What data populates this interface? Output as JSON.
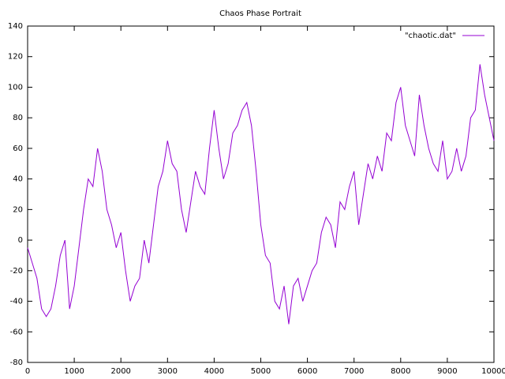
{
  "chart_data": {
    "type": "line",
    "title": "Chaos Phase Portrait",
    "x": [
      0,
      100,
      200,
      300,
      400,
      500,
      600,
      700,
      800,
      900,
      1000,
      1100,
      1200,
      1300,
      1400,
      1500,
      1600,
      1700,
      1800,
      1900,
      2000,
      2100,
      2200,
      2300,
      2400,
      2500,
      2600,
      2700,
      2800,
      2900,
      3000,
      3100,
      3200,
      3300,
      3400,
      3500,
      3600,
      3700,
      3800,
      3900,
      4000,
      4100,
      4200,
      4300,
      4400,
      4500,
      4600,
      4700,
      4800,
      4900,
      5000,
      5100,
      5200,
      5300,
      5400,
      5500,
      5600,
      5700,
      5800,
      5900,
      6000,
      6100,
      6200,
      6300,
      6400,
      6500,
      6600,
      6700,
      6800,
      6900,
      7000,
      7100,
      7200,
      7300,
      7400,
      7500,
      7600,
      7700,
      7800,
      7900,
      8000,
      8100,
      8200,
      8300,
      8400,
      8500,
      8600,
      8700,
      8800,
      8900,
      9000,
      9100,
      9200,
      9300,
      9400,
      9500,
      9600,
      9700,
      9800,
      9900,
      10000
    ],
    "series": [
      {
        "name": "\"chaotic.dat\"",
        "color": "#9400d3",
        "values": [
          -5,
          -15,
          -25,
          -45,
          -50,
          -45,
          -30,
          -10,
          0,
          -45,
          -30,
          -5,
          20,
          40,
          35,
          60,
          45,
          20,
          10,
          -5,
          5,
          -20,
          -40,
          -30,
          -25,
          0,
          -15,
          10,
          35,
          45,
          65,
          50,
          45,
          20,
          5,
          25,
          45,
          35,
          30,
          60,
          85,
          60,
          40,
          50,
          70,
          75,
          85,
          90,
          75,
          45,
          10,
          -10,
          -15,
          -40,
          -45,
          -30,
          -55,
          -30,
          -25,
          -40,
          -30,
          -20,
          -15,
          5,
          15,
          10,
          -5,
          25,
          20,
          35,
          45,
          10,
          30,
          50,
          40,
          55,
          45,
          70,
          65,
          90,
          100,
          75,
          65,
          55,
          95,
          75,
          60,
          50,
          45,
          65,
          40,
          45,
          60,
          45,
          55,
          80,
          85,
          115,
          95,
          80,
          65
        ]
      }
    ],
    "xlim": [
      0,
      10000
    ],
    "xticks": [
      0,
      1000,
      2000,
      3000,
      4000,
      5000,
      6000,
      7000,
      8000,
      9000,
      10000
    ],
    "ylim": [
      -80,
      140
    ],
    "yticks": [
      -80,
      -60,
      -40,
      -20,
      0,
      20,
      40,
      60,
      80,
      100,
      120,
      140
    ],
    "legend": "top-right"
  }
}
